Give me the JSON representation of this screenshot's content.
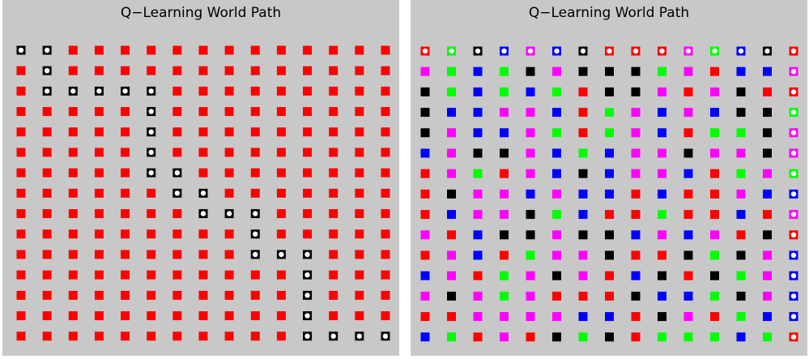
{
  "panels": [
    {
      "title": "Q−Learning World Path",
      "cells": [
        [
          "red",
          "red",
          "red",
          "red",
          "red",
          "red",
          "red",
          "red",
          "red",
          "red",
          "red",
          "red",
          "red",
          "red",
          "red"
        ],
        [
          "red",
          "red",
          "red",
          "red",
          "red",
          "red",
          "red",
          "red",
          "red",
          "red",
          "red",
          "red",
          "red",
          "red",
          "red"
        ],
        [
          "red",
          "red",
          "red",
          "red",
          "red",
          "red",
          "red",
          "red",
          "red",
          "red",
          "red",
          "red",
          "red",
          "red",
          "red"
        ],
        [
          "red",
          "red",
          "red",
          "red",
          "red",
          "red",
          "red",
          "red",
          "red",
          "red",
          "red",
          "red",
          "red",
          "red",
          "red"
        ],
        [
          "red",
          "red",
          "red",
          "red",
          "red",
          "red",
          "red",
          "red",
          "red",
          "red",
          "red",
          "red",
          "red",
          "red",
          "red"
        ],
        [
          "red",
          "red",
          "red",
          "red",
          "red",
          "red",
          "red",
          "red",
          "red",
          "red",
          "red",
          "red",
          "red",
          "red",
          "red"
        ],
        [
          "red",
          "red",
          "red",
          "red",
          "red",
          "red",
          "red",
          "red",
          "red",
          "red",
          "red",
          "red",
          "red",
          "red",
          "red"
        ],
        [
          "red",
          "red",
          "red",
          "red",
          "red",
          "red",
          "red",
          "red",
          "red",
          "red",
          "red",
          "red",
          "red",
          "red",
          "red"
        ],
        [
          "red",
          "red",
          "red",
          "red",
          "red",
          "red",
          "red",
          "red",
          "red",
          "red",
          "red",
          "red",
          "red",
          "red",
          "red"
        ],
        [
          "red",
          "red",
          "red",
          "red",
          "red",
          "red",
          "red",
          "red",
          "red",
          "red",
          "red",
          "red",
          "red",
          "red",
          "red"
        ],
        [
          "red",
          "red",
          "red",
          "red",
          "red",
          "red",
          "red",
          "red",
          "red",
          "red",
          "red",
          "red",
          "red",
          "red",
          "red"
        ],
        [
          "red",
          "red",
          "red",
          "red",
          "red",
          "red",
          "red",
          "red",
          "red",
          "red",
          "red",
          "red",
          "red",
          "red",
          "red"
        ],
        [
          "red",
          "red",
          "red",
          "red",
          "red",
          "red",
          "red",
          "red",
          "red",
          "red",
          "red",
          "red",
          "red",
          "red",
          "red"
        ],
        [
          "red",
          "red",
          "red",
          "red",
          "red",
          "red",
          "red",
          "red",
          "red",
          "red",
          "red",
          "red",
          "red",
          "red",
          "red"
        ],
        [
          "red",
          "red",
          "red",
          "red",
          "red",
          "red",
          "red",
          "red",
          "red",
          "red",
          "red",
          "red",
          "red",
          "red",
          "red"
        ]
      ],
      "path_color": "black",
      "path": [
        [
          0,
          0
        ],
        [
          0,
          1
        ],
        [
          1,
          1
        ],
        [
          2,
          1
        ],
        [
          2,
          2
        ],
        [
          2,
          3
        ],
        [
          2,
          4
        ],
        [
          2,
          5
        ],
        [
          3,
          5
        ],
        [
          4,
          5
        ],
        [
          5,
          5
        ],
        [
          6,
          5
        ],
        [
          6,
          6
        ],
        [
          7,
          6
        ],
        [
          7,
          7
        ],
        [
          8,
          7
        ],
        [
          8,
          8
        ],
        [
          8,
          9
        ],
        [
          9,
          9
        ],
        [
          10,
          9
        ],
        [
          10,
          10
        ],
        [
          10,
          11
        ],
        [
          11,
          11
        ],
        [
          12,
          11
        ],
        [
          13,
          11
        ],
        [
          14,
          11
        ],
        [
          14,
          12
        ],
        [
          14,
          13
        ],
        [
          14,
          14
        ]
      ]
    },
    {
      "title": "Q−Learning World Path",
      "cells": [
        [
          "red",
          "lime",
          "black",
          "blue",
          "magenta",
          "blue",
          "black",
          "red",
          "red",
          "red",
          "magenta",
          "lime",
          "blue",
          "black",
          "red"
        ],
        [
          "magenta",
          "lime",
          "blue",
          "lime",
          "black",
          "magenta",
          "black",
          "black",
          "black",
          "lime",
          "magenta",
          "red",
          "blue",
          "blue",
          "magenta"
        ],
        [
          "black",
          "lime",
          "blue",
          "lime",
          "blue",
          "lime",
          "red",
          "black",
          "black",
          "magenta",
          "red",
          "magenta",
          "black",
          "red",
          "red"
        ],
        [
          "black",
          "blue",
          "blue",
          "magenta",
          "magenta",
          "blue",
          "red",
          "lime",
          "magenta",
          "blue",
          "magenta",
          "blue",
          "black",
          "black",
          "lime"
        ],
        [
          "black",
          "magenta",
          "blue",
          "blue",
          "magenta",
          "lime",
          "red",
          "lime",
          "magenta",
          "blue",
          "red",
          "lime",
          "lime",
          "black",
          "magenta"
        ],
        [
          "blue",
          "magenta",
          "black",
          "black",
          "magenta",
          "blue",
          "lime",
          "blue",
          "magenta",
          "magenta",
          "black",
          "magenta",
          "magenta",
          "black",
          "magenta"
        ],
        [
          "red",
          "magenta",
          "lime",
          "red",
          "magenta",
          "blue",
          "black",
          "blue",
          "magenta",
          "magenta",
          "blue",
          "red",
          "lime",
          "magenta",
          "lime"
        ],
        [
          "red",
          "black",
          "magenta",
          "magenta",
          "blue",
          "magenta",
          "blue",
          "blue",
          "red",
          "blue",
          "red",
          "red",
          "magenta",
          "blue",
          "blue"
        ],
        [
          "red",
          "blue",
          "magenta",
          "magenta",
          "black",
          "lime",
          "blue",
          "red",
          "red",
          "lime",
          "red",
          "red",
          "blue",
          "red",
          "magenta"
        ],
        [
          "magenta",
          "red",
          "blue",
          "black",
          "black",
          "magenta",
          "black",
          "black",
          "blue",
          "magenta",
          "blue",
          "magenta",
          "red",
          "black",
          "red"
        ],
        [
          "red",
          "magenta",
          "blue",
          "red",
          "lime",
          "magenta",
          "magenta",
          "black",
          "red",
          "red",
          "black",
          "lime",
          "black",
          "magenta",
          "blue"
        ],
        [
          "blue",
          "magenta",
          "red",
          "lime",
          "magenta",
          "black",
          "magenta",
          "red",
          "blue",
          "black",
          "red",
          "black",
          "lime",
          "magenta",
          "blue"
        ],
        [
          "magenta",
          "black",
          "magenta",
          "lime",
          "magenta",
          "red",
          "red",
          "red",
          "black",
          "blue",
          "blue",
          "lime",
          "black",
          "magenta",
          "blue"
        ],
        [
          "red",
          "red",
          "magenta",
          "magenta",
          "magenta",
          "magenta",
          "blue",
          "blue",
          "red",
          "black",
          "magenta",
          "red",
          "lime",
          "blue",
          "blue"
        ],
        [
          "blue",
          "lime",
          "red",
          "magenta",
          "red",
          "black",
          "lime",
          "black",
          "red",
          "lime",
          "lime",
          "lime",
          "blue",
          "lime",
          "red"
        ]
      ],
      "path": [
        [
          0,
          0
        ],
        [
          0,
          1
        ],
        [
          0,
          2
        ],
        [
          0,
          3
        ],
        [
          0,
          4
        ],
        [
          0,
          5
        ],
        [
          0,
          6
        ],
        [
          0,
          7
        ],
        [
          0,
          8
        ],
        [
          0,
          9
        ],
        [
          0,
          10
        ],
        [
          0,
          11
        ],
        [
          0,
          12
        ],
        [
          0,
          13
        ],
        [
          0,
          14
        ],
        [
          1,
          14
        ],
        [
          2,
          14
        ],
        [
          3,
          14
        ],
        [
          4,
          14
        ],
        [
          5,
          14
        ],
        [
          6,
          14
        ],
        [
          7,
          14
        ],
        [
          8,
          14
        ],
        [
          9,
          14
        ],
        [
          10,
          14
        ],
        [
          11,
          14
        ],
        [
          12,
          14
        ],
        [
          13,
          14
        ],
        [
          14,
          14
        ]
      ]
    }
  ]
}
